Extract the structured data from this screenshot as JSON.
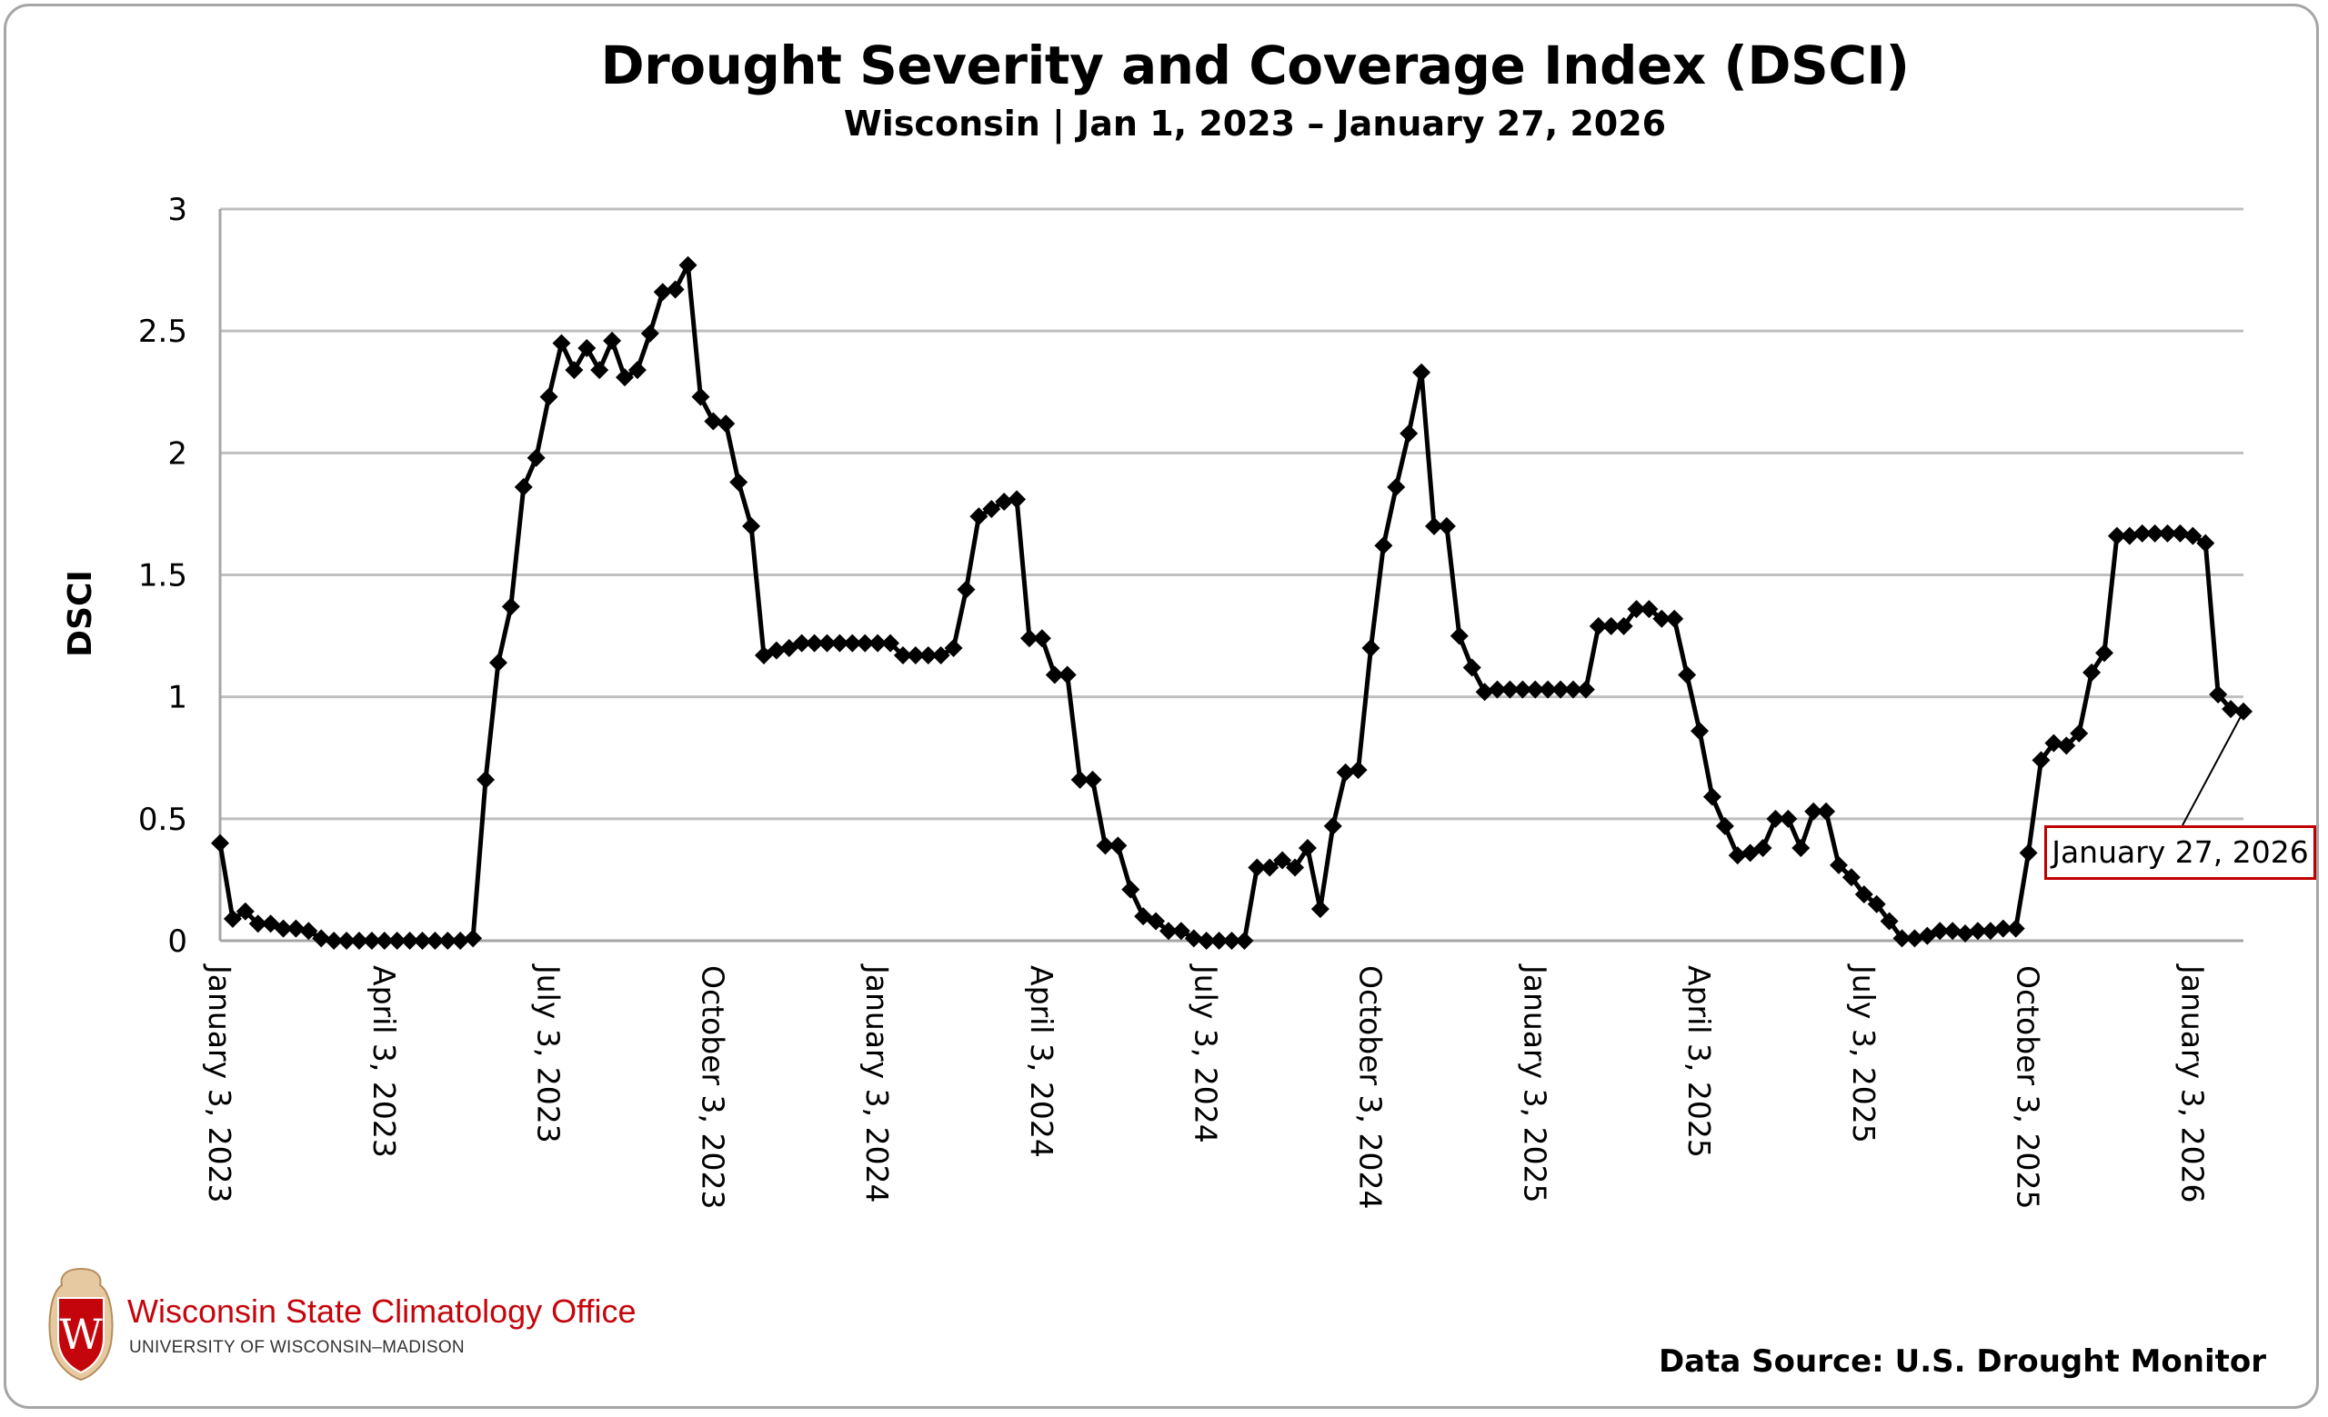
{
  "header": {
    "title": "Drought Severity and Coverage Index (DSCI)",
    "subtitle": "Wisconsin | Jan 1, 2023 – January 27, 2026"
  },
  "callout": {
    "label": "January 27, 2026"
  },
  "footer": {
    "org_name": "Wisconsin State Climatology Office",
    "org_sub": "UNIVERSITY OF WISCONSIN–MADISON",
    "logo_icon": "uw-crest-icon",
    "source": "Data Source: U.S. Drought Monitor"
  },
  "colors": {
    "line": "#000000",
    "grid": "#bfbfbf",
    "callout_border": "#c00000",
    "brand_red": "#c5050c"
  },
  "chart_data": {
    "type": "line",
    "title": "Drought Severity and Coverage Index (DSCI)",
    "subtitle": "Wisconsin | Jan 1, 2023 – January 27, 2026",
    "xlabel": "",
    "ylabel": "DSCI",
    "ylim": [
      0,
      3
    ],
    "yticks": [
      "0",
      "0.5",
      "1",
      "1.5",
      "2",
      "2.5",
      "3"
    ],
    "grid": true,
    "x_frequency": "weekly",
    "x_start": "January 3, 2023",
    "x_end": "January 27, 2026",
    "xtick_labels": [
      "January 3, 2023",
      "April 3, 2023",
      "July 3, 2023",
      "October 3, 2023",
      "January 3, 2024",
      "April 3, 2024",
      "July 3, 2024",
      "October 3, 2024",
      "January 3, 2025",
      "April 3, 2025",
      "July 3, 2025",
      "October 3, 2025",
      "January 3, 2026"
    ],
    "xtick_index": [
      0,
      13,
      26,
      39,
      52,
      65,
      78,
      91,
      104,
      117,
      130,
      143,
      156
    ],
    "annotation": {
      "text": "January 27, 2026",
      "point_index": "last"
    },
    "series": [
      {
        "name": "DSCI",
        "marker": "diamond",
        "values": [
          0.4,
          0.09,
          0.12,
          0.07,
          0.07,
          0.05,
          0.05,
          0.04,
          0.01,
          0,
          0,
          0,
          0,
          0,
          0,
          0,
          0,
          0,
          0,
          0,
          0.01,
          0.66,
          1.14,
          1.37,
          1.86,
          1.98,
          2.23,
          2.45,
          2.34,
          2.43,
          2.34,
          2.46,
          2.31,
          2.34,
          2.49,
          2.66,
          2.67,
          2.77,
          2.23,
          2.13,
          2.12,
          1.88,
          1.7,
          1.17,
          1.19,
          1.2,
          1.22,
          1.22,
          1.22,
          1.22,
          1.22,
          1.22,
          1.22,
          1.22,
          1.17,
          1.17,
          1.17,
          1.17,
          1.2,
          1.44,
          1.74,
          1.77,
          1.8,
          1.81,
          1.24,
          1.24,
          1.09,
          1.09,
          0.66,
          0.66,
          0.39,
          0.39,
          0.21,
          0.1,
          0.08,
          0.04,
          0.04,
          0.01,
          0,
          0,
          0,
          0,
          0.3,
          0.3,
          0.33,
          0.3,
          0.38,
          0.13,
          0.47,
          0.69,
          0.7,
          1.2,
          1.62,
          1.86,
          2.08,
          2.33,
          1.7,
          1.7,
          1.25,
          1.12,
          1.02,
          1.03,
          1.03,
          1.03,
          1.03,
          1.03,
          1.03,
          1.03,
          1.03,
          1.29,
          1.29,
          1.29,
          1.36,
          1.36,
          1.32,
          1.32,
          1.09,
          0.86,
          0.59,
          0.47,
          0.35,
          0.36,
          0.38,
          0.5,
          0.5,
          0.38,
          0.53,
          0.53,
          0.31,
          0.26,
          0.19,
          0.15,
          0.08,
          0.01,
          0.01,
          0.02,
          0.04,
          0.04,
          0.03,
          0.04,
          0.04,
          0.05,
          0.05,
          0.36,
          0.74,
          0.81,
          0.8,
          0.85,
          1.1,
          1.18,
          1.66,
          1.66,
          1.67,
          1.67,
          1.67,
          1.67,
          1.66,
          1.63,
          1.01,
          0.95,
          0.94
        ]
      }
    ]
  }
}
